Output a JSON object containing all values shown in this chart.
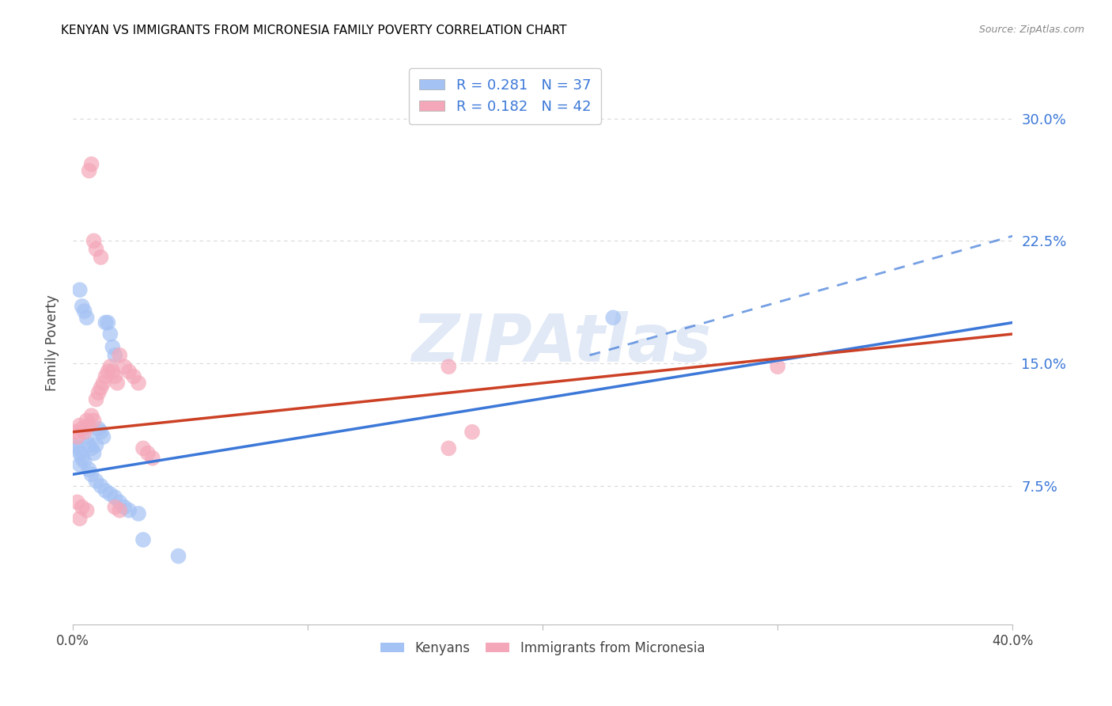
{
  "title": "KENYAN VS IMMIGRANTS FROM MICRONESIA FAMILY POVERTY CORRELATION CHART",
  "source": "Source: ZipAtlas.com",
  "ylabel": "Family Poverty",
  "ytick_labels": [
    "7.5%",
    "15.0%",
    "22.5%",
    "30.0%"
  ],
  "ytick_values": [
    0.075,
    0.15,
    0.225,
    0.3
  ],
  "xlim": [
    0.0,
    0.4
  ],
  "ylim": [
    -0.01,
    0.335
  ],
  "watermark": "ZIPAtlas",
  "kenyan_color": "#a4c2f4",
  "micronesia_color": "#f4a7b9",
  "kenyan_line_color": "#3c78d8",
  "micronesia_line_color": "#cc4125",
  "kenyan_scatter": [
    [
      0.001,
      0.1
    ],
    [
      0.002,
      0.098
    ],
    [
      0.003,
      0.095
    ],
    [
      0.003,
      0.088
    ],
    [
      0.004,
      0.092
    ],
    [
      0.005,
      0.09
    ],
    [
      0.006,
      0.105
    ],
    [
      0.007,
      0.1
    ],
    [
      0.008,
      0.098
    ],
    [
      0.009,
      0.095
    ],
    [
      0.01,
      0.1
    ],
    [
      0.011,
      0.11
    ],
    [
      0.012,
      0.108
    ],
    [
      0.013,
      0.105
    ],
    [
      0.014,
      0.175
    ],
    [
      0.015,
      0.175
    ],
    [
      0.016,
      0.168
    ],
    [
      0.017,
      0.16
    ],
    [
      0.018,
      0.155
    ],
    [
      0.003,
      0.195
    ],
    [
      0.004,
      0.185
    ],
    [
      0.005,
      0.182
    ],
    [
      0.006,
      0.178
    ],
    [
      0.007,
      0.085
    ],
    [
      0.008,
      0.082
    ],
    [
      0.01,
      0.078
    ],
    [
      0.012,
      0.075
    ],
    [
      0.014,
      0.072
    ],
    [
      0.016,
      0.07
    ],
    [
      0.018,
      0.068
    ],
    [
      0.02,
      0.065
    ],
    [
      0.022,
      0.062
    ],
    [
      0.024,
      0.06
    ],
    [
      0.028,
      0.058
    ],
    [
      0.23,
      0.178
    ],
    [
      0.03,
      0.042
    ],
    [
      0.045,
      0.032
    ]
  ],
  "micronesia_scatter": [
    [
      0.001,
      0.108
    ],
    [
      0.002,
      0.105
    ],
    [
      0.003,
      0.112
    ],
    [
      0.004,
      0.11
    ],
    [
      0.005,
      0.108
    ],
    [
      0.006,
      0.115
    ],
    [
      0.007,
      0.112
    ],
    [
      0.008,
      0.118
    ],
    [
      0.009,
      0.115
    ],
    [
      0.01,
      0.128
    ],
    [
      0.011,
      0.132
    ],
    [
      0.012,
      0.135
    ],
    [
      0.013,
      0.138
    ],
    [
      0.014,
      0.142
    ],
    [
      0.015,
      0.145
    ],
    [
      0.016,
      0.148
    ],
    [
      0.017,
      0.145
    ],
    [
      0.018,
      0.142
    ],
    [
      0.019,
      0.138
    ],
    [
      0.02,
      0.155
    ],
    [
      0.022,
      0.148
    ],
    [
      0.024,
      0.145
    ],
    [
      0.026,
      0.142
    ],
    [
      0.028,
      0.138
    ],
    [
      0.03,
      0.098
    ],
    [
      0.032,
      0.095
    ],
    [
      0.034,
      0.092
    ],
    [
      0.007,
      0.268
    ],
    [
      0.008,
      0.272
    ],
    [
      0.009,
      0.225
    ],
    [
      0.01,
      0.22
    ],
    [
      0.012,
      0.215
    ],
    [
      0.16,
      0.148
    ],
    [
      0.3,
      0.148
    ],
    [
      0.002,
      0.065
    ],
    [
      0.004,
      0.062
    ],
    [
      0.006,
      0.06
    ],
    [
      0.018,
      0.062
    ],
    [
      0.02,
      0.06
    ],
    [
      0.16,
      0.098
    ],
    [
      0.003,
      0.055
    ],
    [
      0.17,
      0.108
    ]
  ],
  "kenyan_line": {
    "x0": 0.0,
    "x1": 0.4,
    "y0": 0.082,
    "y1": 0.175
  },
  "micronesia_line": {
    "x0": 0.0,
    "x1": 0.4,
    "y0": 0.108,
    "y1": 0.168
  },
  "kenyan_line_ext": {
    "x0": 0.22,
    "x1": 0.4,
    "y0": 0.155,
    "y1": 0.228
  },
  "background_color": "#ffffff",
  "grid_color": "#d9d9d9",
  "title_color": "#000000",
  "title_fontsize": 11,
  "axis_label_color": "#444444"
}
